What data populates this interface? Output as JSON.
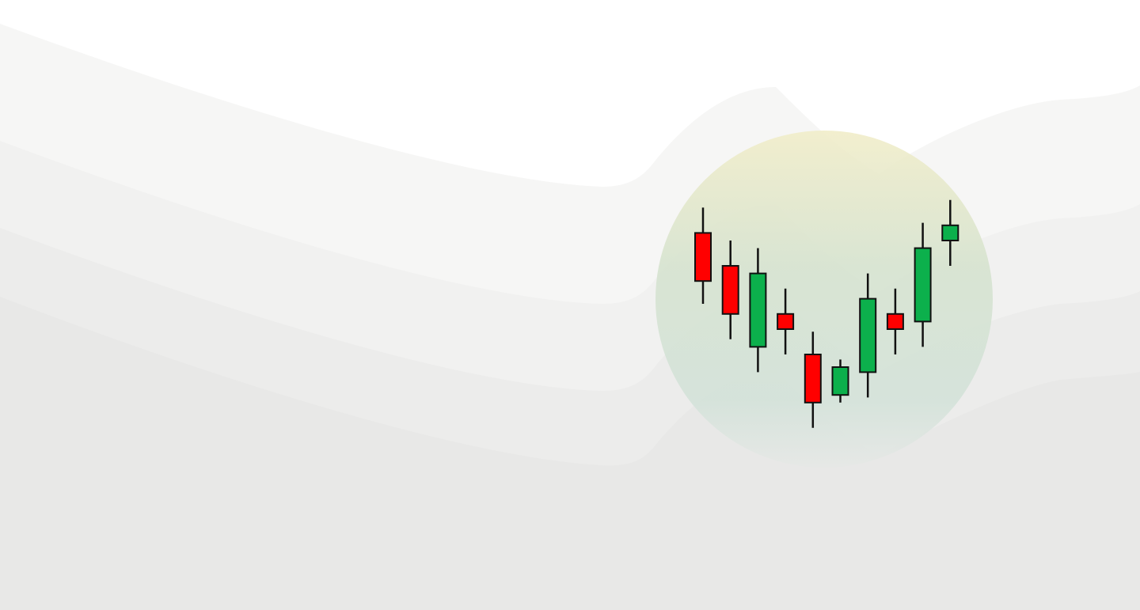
{
  "chart_data": {
    "type": "candlestick",
    "series": [
      {
        "name": "open",
        "values": [
          83,
          70,
          38,
          51,
          35,
          19,
          28,
          51,
          48,
          80
        ]
      },
      {
        "name": "high",
        "values": [
          93,
          80,
          77,
          61,
          44,
          33,
          67,
          61,
          87,
          96
        ]
      },
      {
        "name": "low",
        "values": [
          55,
          41,
          28,
          35,
          6,
          16,
          18,
          35,
          38,
          70
        ]
      },
      {
        "name": "close",
        "values": [
          64,
          51,
          67,
          45,
          16,
          30,
          57,
          45,
          77,
          86
        ]
      }
    ],
    "up_color": "#0cb04c",
    "down_color": "#ff0000",
    "ylim": [
      0,
      100
    ]
  }
}
